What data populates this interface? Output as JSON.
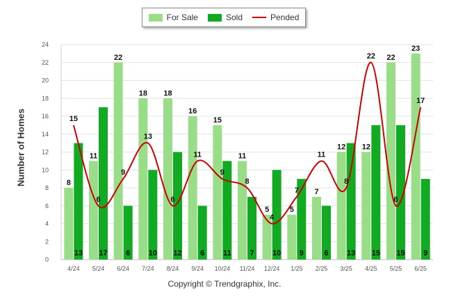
{
  "chart_data": {
    "type": "bar",
    "categories": [
      "4/24",
      "5/24",
      "6/24",
      "7/24",
      "8/24",
      "9/24",
      "10/24",
      "11/24",
      "12/24",
      "1/25",
      "2/25",
      "3/25",
      "4/25",
      "5/25",
      "6/25"
    ],
    "series": [
      {
        "name": "For Sale",
        "kind": "bar",
        "color": "#99dd88",
        "values": [
          8,
          11,
          22,
          18,
          18,
          16,
          15,
          11,
          5,
          5,
          7,
          12,
          12,
          22,
          23
        ]
      },
      {
        "name": "Sold",
        "kind": "bar",
        "color": "#11aa22",
        "values": [
          13,
          17,
          6,
          10,
          12,
          6,
          11,
          7,
          10,
          9,
          6,
          13,
          15,
          15,
          9
        ]
      },
      {
        "name": "Pended",
        "kind": "line",
        "color": "#cc0000",
        "values": [
          15,
          6,
          9,
          13,
          6,
          11,
          9,
          8,
          4,
          7,
          11,
          8,
          22,
          6,
          17
        ]
      }
    ],
    "ylabel": "Number of Homes",
    "ylim": [
      0,
      24
    ],
    "yticks": [
      0,
      2,
      4,
      6,
      8,
      10,
      12,
      14,
      16,
      18,
      20,
      22,
      24
    ],
    "grid": true,
    "legend": "top"
  },
  "copyright": "Copyright © Trendgraphix, Inc."
}
